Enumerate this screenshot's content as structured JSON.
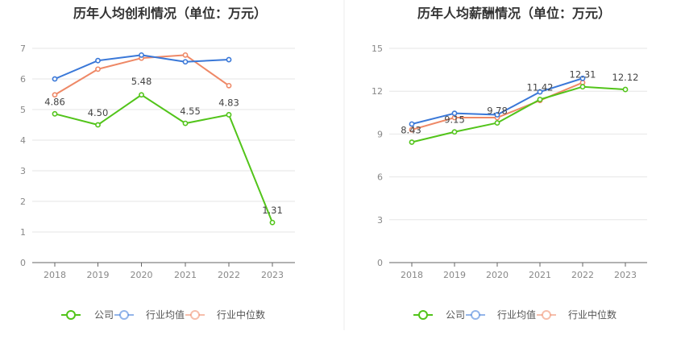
{
  "chart_data": [
    {
      "type": "line",
      "title": "历年人均创利情况（单位：万元）",
      "xlabel": "",
      "ylabel": "",
      "categories": [
        "2018",
        "2019",
        "2020",
        "2021",
        "2022",
        "2023"
      ],
      "ylim": [
        0,
        7
      ],
      "yticks": [
        "0",
        "1",
        "2",
        "3",
        "4",
        "5",
        "6",
        "7"
      ],
      "grid": true,
      "legend_position": "bottom",
      "series": [
        {
          "name": "公司",
          "color": "#52c41a",
          "values": [
            4.86,
            4.5,
            5.48,
            4.55,
            4.83,
            1.31
          ],
          "labels": [
            "4.86",
            "4.50",
            "5.48",
            "4.55",
            "4.83",
            "1.31"
          ]
        },
        {
          "name": "行业均值",
          "color": "#3a78d8",
          "values": [
            6.0,
            6.6,
            6.78,
            6.56,
            6.63,
            null
          ]
        },
        {
          "name": "行业中位数",
          "color": "#ee8866",
          "values": [
            5.48,
            6.32,
            6.68,
            6.78,
            5.78,
            null
          ]
        }
      ]
    },
    {
      "type": "line",
      "title": "历年人均薪酬情况（单位：万元）",
      "xlabel": "",
      "ylabel": "",
      "categories": [
        "2018",
        "2019",
        "2020",
        "2021",
        "2022",
        "2023"
      ],
      "ylim": [
        0,
        15
      ],
      "yticks": [
        "0",
        "3",
        "6",
        "9",
        "12",
        "15"
      ],
      "grid": true,
      "legend_position": "bottom",
      "series": [
        {
          "name": "公司",
          "color": "#52c41a",
          "values": [
            8.43,
            9.15,
            9.78,
            11.42,
            12.31,
            12.12
          ],
          "labels": [
            "8.43",
            "9.15",
            "9.78",
            "11.42",
            "12.31",
            "12.12"
          ]
        },
        {
          "name": "行业均值",
          "color": "#3a78d8",
          "values": [
            9.7,
            10.45,
            10.35,
            11.95,
            12.9,
            null
          ]
        },
        {
          "name": "行业中位数",
          "color": "#ee8866",
          "values": [
            9.3,
            10.15,
            10.15,
            11.35,
            12.6,
            null
          ]
        }
      ]
    }
  ]
}
